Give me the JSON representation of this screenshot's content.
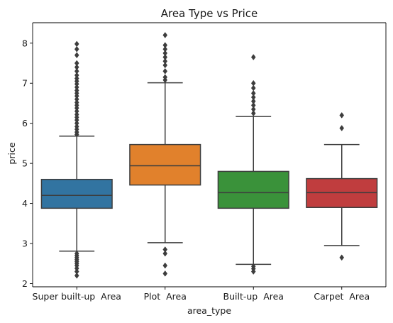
{
  "chart_data": {
    "type": "box",
    "title": "Area Type vs Price",
    "xlabel": "area_type",
    "ylabel": "price",
    "ylim": [
      1.92,
      8.51
    ],
    "yticks": [
      2,
      3,
      4,
      5,
      6,
      7,
      8
    ],
    "grid": false,
    "legend": "none",
    "categories": [
      "Super built-up  Area",
      "Plot  Area",
      "Built-up  Area",
      "Carpet  Area"
    ],
    "boxes": [
      {
        "category": "Super built-up  Area",
        "color": "#3274a1",
        "whisker_low": 2.81,
        "q1": 3.88,
        "median": 4.2,
        "q3": 4.6,
        "whisker_high": 5.68,
        "outliers": [
          2.2,
          2.3,
          2.38,
          2.45,
          2.5,
          2.55,
          2.6,
          2.65,
          2.7,
          2.75,
          5.72,
          5.78,
          5.85,
          5.92,
          6.0,
          6.08,
          6.15,
          6.22,
          6.3,
          6.38,
          6.45,
          6.52,
          6.6,
          6.68,
          6.75,
          6.82,
          6.9,
          6.98,
          7.05,
          7.12,
          7.2,
          7.3,
          7.4,
          7.5,
          7.7,
          7.85,
          7.98
        ]
      },
      {
        "category": "Plot  Area",
        "color": "#e1812c",
        "whisker_low": 3.02,
        "q1": 4.46,
        "median": 4.94,
        "q3": 5.47,
        "whisker_high": 7.01,
        "outliers": [
          2.25,
          2.45,
          2.75,
          2.85,
          7.08,
          7.15,
          7.3,
          7.45,
          7.55,
          7.65,
          7.75,
          7.85,
          7.95,
          8.2
        ]
      },
      {
        "category": "Built-up  Area",
        "color": "#3a923a",
        "whisker_low": 2.48,
        "q1": 3.88,
        "median": 4.27,
        "q3": 4.8,
        "whisker_high": 6.17,
        "outliers": [
          2.3,
          2.37,
          2.43,
          6.25,
          6.35,
          6.45,
          6.55,
          6.65,
          6.75,
          6.88,
          7.0,
          7.65
        ]
      },
      {
        "category": "Carpet  Area",
        "color": "#c03d3e",
        "whisker_low": 2.95,
        "q1": 3.9,
        "median": 4.27,
        "q3": 4.62,
        "whisker_high": 5.47,
        "outliers": [
          2.65,
          5.88,
          6.2
        ]
      }
    ]
  }
}
